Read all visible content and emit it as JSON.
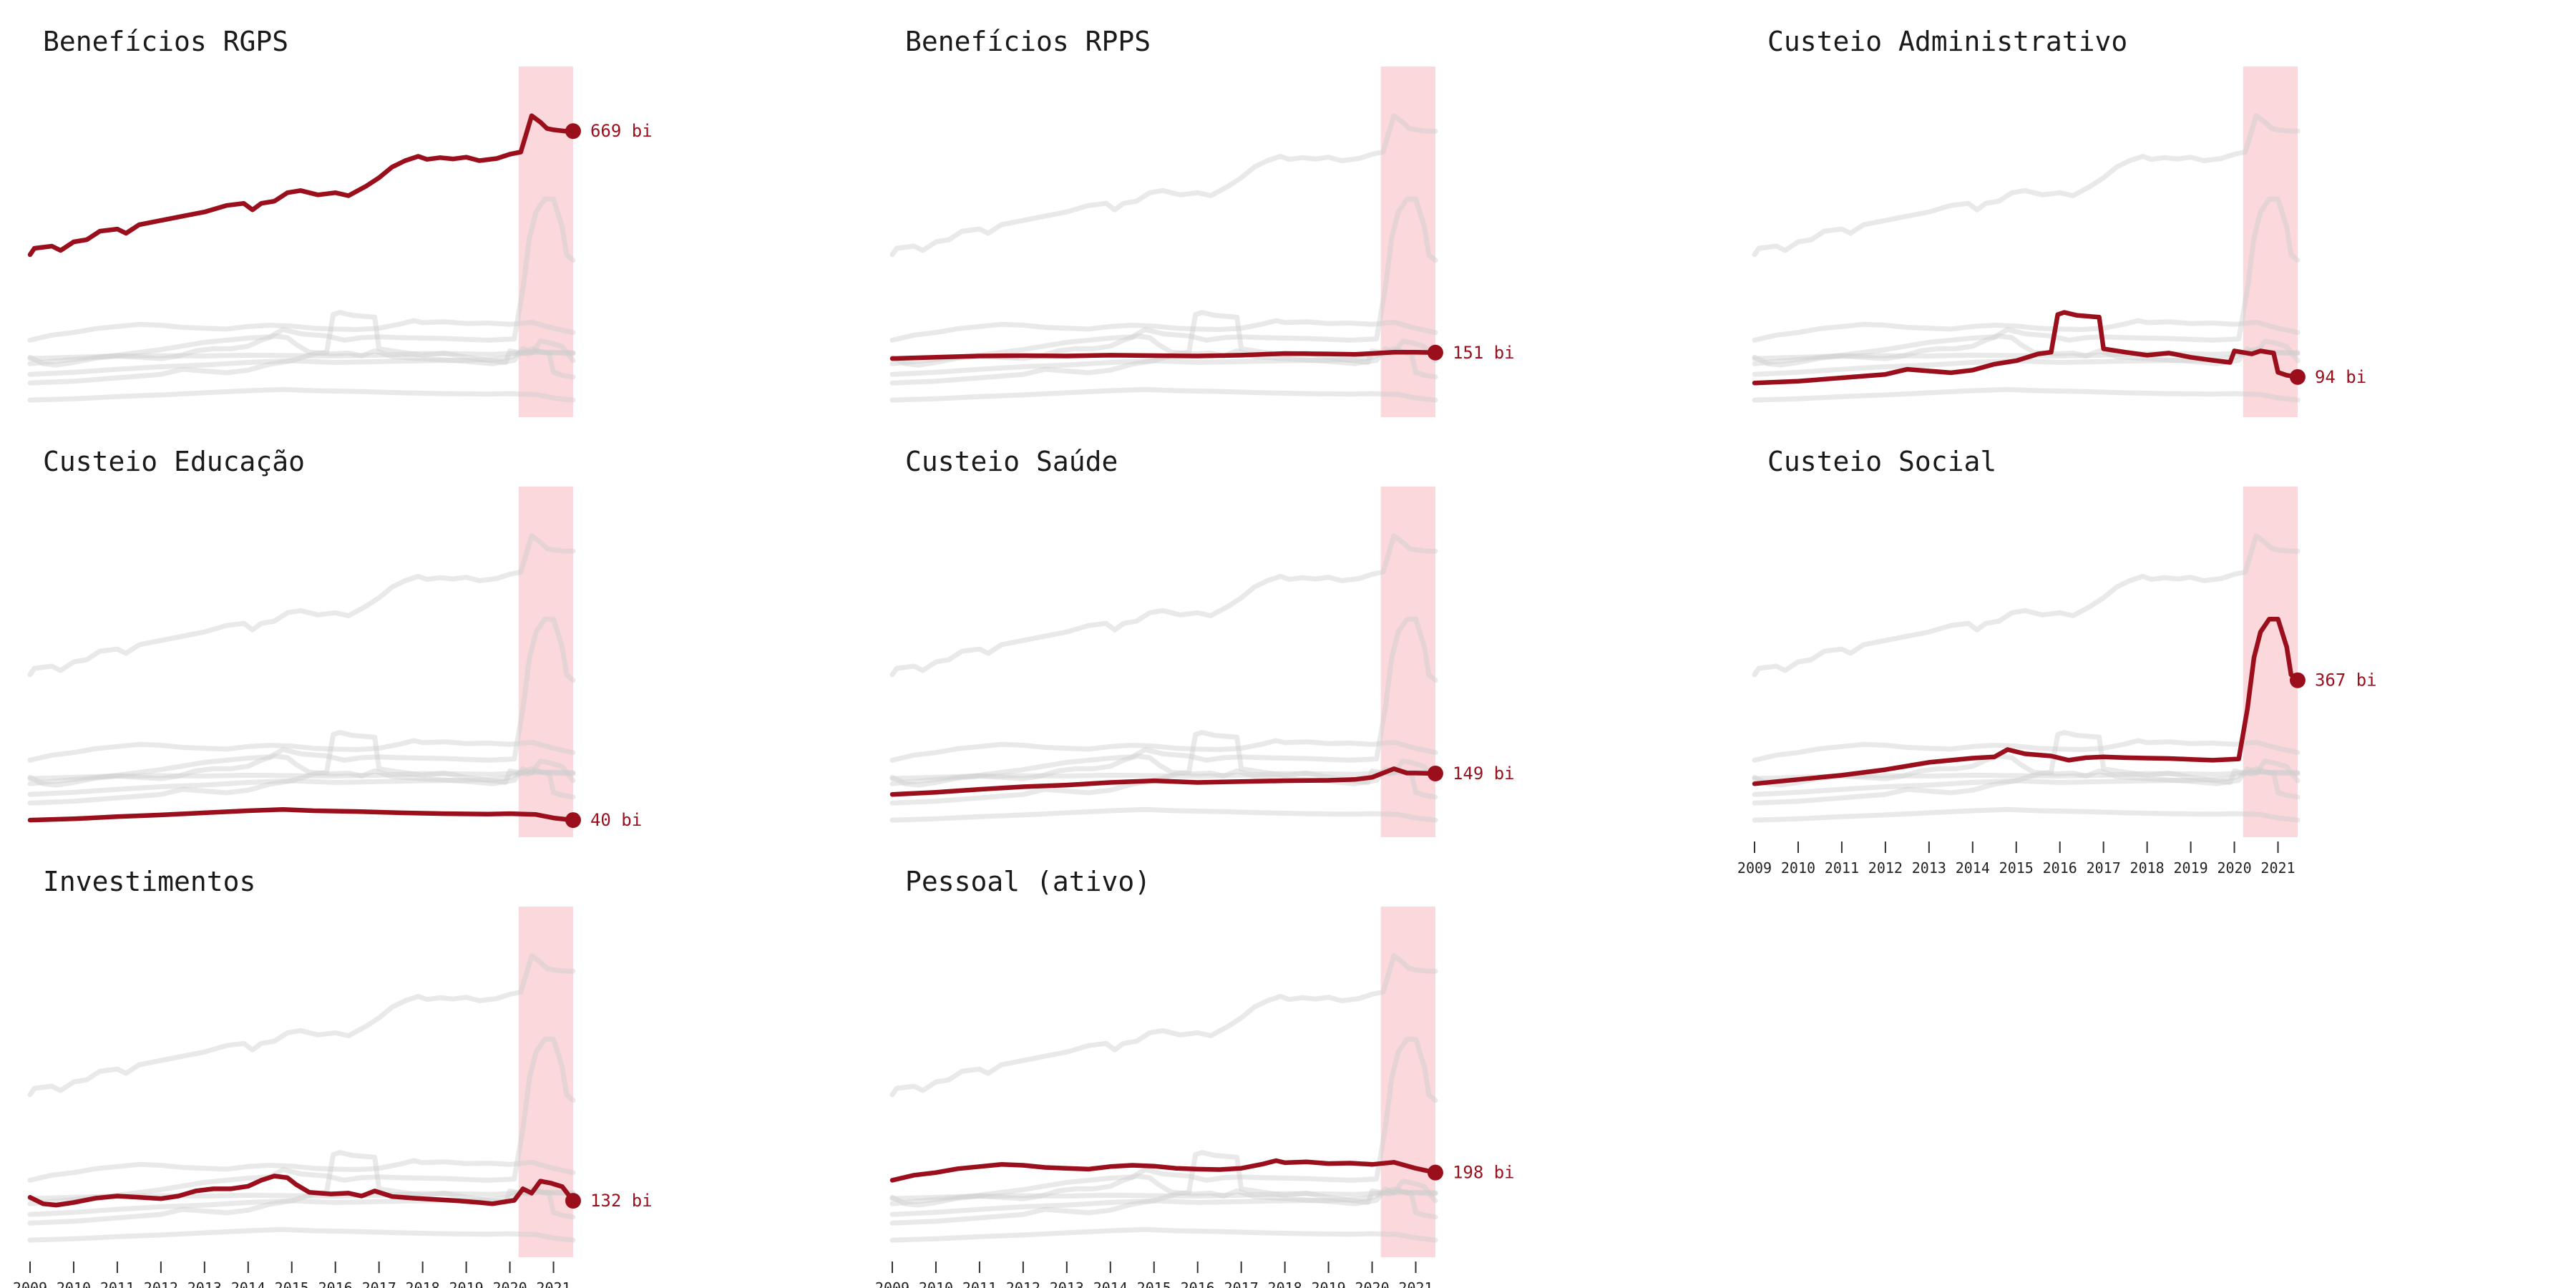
{
  "chart_data": {
    "type": "line",
    "layout": "small-multiples",
    "x_years": [
      "2009",
      "2010",
      "2011",
      "2012",
      "2013",
      "2014",
      "2015",
      "2016",
      "2017",
      "2018",
      "2019",
      "2020",
      "2021"
    ],
    "xlim": [
      2009.0,
      2021.5
    ],
    "ylim": [
      0,
      820
    ],
    "highlight_band": [
      2020.2,
      2021.45
    ],
    "value_suffix": " bi",
    "colors": {
      "accent": "#9b0f1c",
      "context": "#cfcfcf",
      "band": "#f5b8c0"
    },
    "series": [
      {
        "name": "Benefícios RGPS",
        "values": [
          [
            2009.0,
            380
          ],
          [
            2009.1,
            395
          ],
          [
            2009.5,
            400
          ],
          [
            2009.7,
            390
          ],
          [
            2010.0,
            410
          ],
          [
            2010.3,
            415
          ],
          [
            2010.6,
            435
          ],
          [
            2011.0,
            440
          ],
          [
            2011.2,
            430
          ],
          [
            2011.5,
            450
          ],
          [
            2012.0,
            460
          ],
          [
            2012.5,
            470
          ],
          [
            2013.0,
            480
          ],
          [
            2013.5,
            495
          ],
          [
            2013.9,
            500
          ],
          [
            2014.1,
            485
          ],
          [
            2014.3,
            500
          ],
          [
            2014.6,
            505
          ],
          [
            2014.9,
            525
          ],
          [
            2015.2,
            530
          ],
          [
            2015.6,
            520
          ],
          [
            2016.0,
            525
          ],
          [
            2016.3,
            518
          ],
          [
            2016.7,
            540
          ],
          [
            2017.0,
            560
          ],
          [
            2017.3,
            585
          ],
          [
            2017.6,
            600
          ],
          [
            2017.9,
            610
          ],
          [
            2018.1,
            603
          ],
          [
            2018.4,
            607
          ],
          [
            2018.7,
            604
          ],
          [
            2019.0,
            608
          ],
          [
            2019.3,
            600
          ],
          [
            2019.7,
            605
          ],
          [
            2020.0,
            615
          ],
          [
            2020.25,
            620
          ],
          [
            2020.5,
            705
          ],
          [
            2020.7,
            690
          ],
          [
            2020.85,
            675
          ],
          [
            2021.0,
            672
          ],
          [
            2021.25,
            669
          ],
          [
            2021.45,
            669
          ]
        ],
        "end_label": "669 bi"
      },
      {
        "name": "Benefícios RPPS",
        "values": [
          [
            2009.0,
            137
          ],
          [
            2010.0,
            140
          ],
          [
            2011.0,
            143
          ],
          [
            2012.0,
            144
          ],
          [
            2013.0,
            143
          ],
          [
            2014.0,
            145
          ],
          [
            2015.0,
            144
          ],
          [
            2016.0,
            143
          ],
          [
            2017.0,
            145
          ],
          [
            2018.0,
            149
          ],
          [
            2019.0,
            148
          ],
          [
            2019.6,
            147
          ],
          [
            2020.0,
            149
          ],
          [
            2020.5,
            152
          ],
          [
            2021.0,
            152
          ],
          [
            2021.45,
            151
          ]
        ],
        "end_label": "151 bi"
      },
      {
        "name": "Custeio Administrativo",
        "values": [
          [
            2009.0,
            80
          ],
          [
            2010.0,
            84
          ],
          [
            2011.0,
            92
          ],
          [
            2012.0,
            100
          ],
          [
            2012.5,
            112
          ],
          [
            2013.0,
            108
          ],
          [
            2013.5,
            104
          ],
          [
            2014.0,
            110
          ],
          [
            2014.5,
            124
          ],
          [
            2015.0,
            132
          ],
          [
            2015.5,
            148
          ],
          [
            2015.8,
            152
          ],
          [
            2015.95,
            240
          ],
          [
            2016.1,
            245
          ],
          [
            2016.4,
            238
          ],
          [
            2016.9,
            234
          ],
          [
            2017.0,
            160
          ],
          [
            2017.5,
            152
          ],
          [
            2018.0,
            145
          ],
          [
            2018.5,
            150
          ],
          [
            2019.0,
            140
          ],
          [
            2019.5,
            133
          ],
          [
            2019.9,
            128
          ],
          [
            2020.0,
            155
          ],
          [
            2020.4,
            148
          ],
          [
            2020.6,
            155
          ],
          [
            2020.9,
            150
          ],
          [
            2021.0,
            105
          ],
          [
            2021.2,
            98
          ],
          [
            2021.45,
            94
          ]
        ],
        "end_label": "94 bi"
      },
      {
        "name": "Custeio Educação",
        "values": [
          [
            2009.0,
            40
          ],
          [
            2010.0,
            43
          ],
          [
            2011.0,
            48
          ],
          [
            2012.0,
            52
          ],
          [
            2013.0,
            57
          ],
          [
            2014.0,
            62
          ],
          [
            2014.8,
            65
          ],
          [
            2015.5,
            62
          ],
          [
            2016.5,
            60
          ],
          [
            2017.5,
            57
          ],
          [
            2018.5,
            55
          ],
          [
            2019.5,
            54
          ],
          [
            2020.0,
            55
          ],
          [
            2020.6,
            53
          ],
          [
            2021.0,
            45
          ],
          [
            2021.45,
            40
          ]
        ],
        "end_label": "40 bi"
      },
      {
        "name": "Custeio Saúde",
        "values": [
          [
            2009.0,
            100
          ],
          [
            2010.0,
            105
          ],
          [
            2011.0,
            112
          ],
          [
            2012.0,
            118
          ],
          [
            2013.0,
            122
          ],
          [
            2014.0,
            128
          ],
          [
            2015.0,
            132
          ],
          [
            2016.0,
            128
          ],
          [
            2017.0,
            130
          ],
          [
            2018.0,
            132
          ],
          [
            2019.0,
            133
          ],
          [
            2019.6,
            135
          ],
          [
            2020.0,
            140
          ],
          [
            2020.5,
            160
          ],
          [
            2020.8,
            150
          ],
          [
            2021.0,
            150
          ],
          [
            2021.45,
            149
          ]
        ],
        "end_label": "149 bi"
      },
      {
        "name": "Custeio Social",
        "values": [
          [
            2009.0,
            125
          ],
          [
            2010.0,
            135
          ],
          [
            2011.0,
            145
          ],
          [
            2012.0,
            158
          ],
          [
            2013.0,
            175
          ],
          [
            2014.0,
            185
          ],
          [
            2014.5,
            188
          ],
          [
            2014.8,
            205
          ],
          [
            2015.2,
            195
          ],
          [
            2015.8,
            190
          ],
          [
            2016.2,
            180
          ],
          [
            2016.6,
            186
          ],
          [
            2017.0,
            188
          ],
          [
            2017.5,
            186
          ],
          [
            2018.0,
            185
          ],
          [
            2018.5,
            184
          ],
          [
            2019.0,
            182
          ],
          [
            2019.5,
            180
          ],
          [
            2019.9,
            182
          ],
          [
            2020.1,
            183
          ],
          [
            2020.3,
            300
          ],
          [
            2020.45,
            420
          ],
          [
            2020.6,
            480
          ],
          [
            2020.8,
            510
          ],
          [
            2021.0,
            510
          ],
          [
            2021.2,
            445
          ],
          [
            2021.3,
            380
          ],
          [
            2021.45,
            367
          ]
        ],
        "end_label": "367 bi"
      },
      {
        "name": "Investimentos",
        "values": [
          [
            2009.0,
            140
          ],
          [
            2009.1,
            135
          ],
          [
            2009.3,
            125
          ],
          [
            2009.6,
            122
          ],
          [
            2010.0,
            128
          ],
          [
            2010.5,
            138
          ],
          [
            2011.0,
            143
          ],
          [
            2011.5,
            140
          ],
          [
            2012.0,
            137
          ],
          [
            2012.4,
            143
          ],
          [
            2012.8,
            155
          ],
          [
            2013.2,
            160
          ],
          [
            2013.6,
            160
          ],
          [
            2014.0,
            166
          ],
          [
            2014.3,
            180
          ],
          [
            2014.6,
            190
          ],
          [
            2014.9,
            186
          ],
          [
            2015.1,
            170
          ],
          [
            2015.4,
            152
          ],
          [
            2015.9,
            148
          ],
          [
            2016.3,
            150
          ],
          [
            2016.6,
            143
          ],
          [
            2016.9,
            155
          ],
          [
            2017.3,
            142
          ],
          [
            2017.8,
            138
          ],
          [
            2018.3,
            135
          ],
          [
            2018.8,
            132
          ],
          [
            2019.3,
            128
          ],
          [
            2019.6,
            125
          ],
          [
            2019.9,
            130
          ],
          [
            2020.1,
            133
          ],
          [
            2020.3,
            160
          ],
          [
            2020.5,
            150
          ],
          [
            2020.7,
            178
          ],
          [
            2020.95,
            173
          ],
          [
            2021.2,
            165
          ],
          [
            2021.45,
            132
          ]
        ],
        "end_label": "132 bi"
      },
      {
        "name": "Pessoal (ativo)",
        "values": [
          [
            2009.0,
            180
          ],
          [
            2009.5,
            192
          ],
          [
            2010.0,
            198
          ],
          [
            2010.5,
            207
          ],
          [
            2011.0,
            212
          ],
          [
            2011.5,
            217
          ],
          [
            2012.0,
            215
          ],
          [
            2012.5,
            210
          ],
          [
            2013.0,
            208
          ],
          [
            2013.5,
            206
          ],
          [
            2014.0,
            212
          ],
          [
            2014.5,
            215
          ],
          [
            2015.0,
            213
          ],
          [
            2015.5,
            208
          ],
          [
            2016.0,
            206
          ],
          [
            2016.5,
            205
          ],
          [
            2017.0,
            208
          ],
          [
            2017.5,
            218
          ],
          [
            2017.8,
            226
          ],
          [
            2018.0,
            221
          ],
          [
            2018.5,
            223
          ],
          [
            2019.0,
            219
          ],
          [
            2019.5,
            220
          ],
          [
            2020.0,
            217
          ],
          [
            2020.5,
            222
          ],
          [
            2021.0,
            208
          ],
          [
            2021.45,
            198
          ]
        ],
        "end_label": "198 bi"
      }
    ]
  }
}
